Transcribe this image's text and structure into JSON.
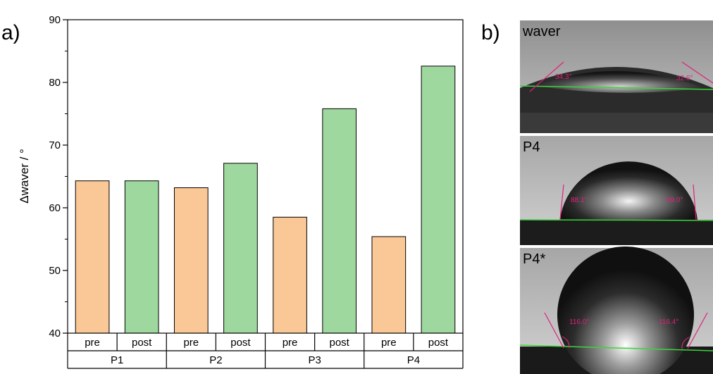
{
  "panel_a": {
    "label": "a)"
  },
  "panel_b": {
    "label": "b)",
    "images": [
      {
        "label": "waver",
        "angle_left": "34.3°",
        "angle_right": "32.6°"
      },
      {
        "label": "P4",
        "angle_left": "88.1°",
        "angle_right": "89.0°"
      },
      {
        "label": "P4*",
        "angle_left": "116.0°",
        "angle_right": "116.4°"
      }
    ]
  },
  "chart_data": {
    "type": "bar",
    "title": "",
    "xlabel": "",
    "ylabel": "Δwaver  / °",
    "ylim": [
      40,
      90
    ],
    "yticks": [
      40,
      50,
      60,
      70,
      80,
      90
    ],
    "groups": [
      "P1",
      "P2",
      "P3",
      "P4"
    ],
    "subcategories": [
      "pre",
      "post"
    ],
    "series": [
      {
        "name": "pre",
        "color": "#f9c896",
        "values": [
          64.3,
          63.2,
          58.5,
          55.4
        ]
      },
      {
        "name": "post",
        "color": "#9fd89f",
        "values": [
          64.3,
          67.1,
          75.8,
          82.6
        ]
      }
    ],
    "grid": false,
    "legend": "none"
  }
}
